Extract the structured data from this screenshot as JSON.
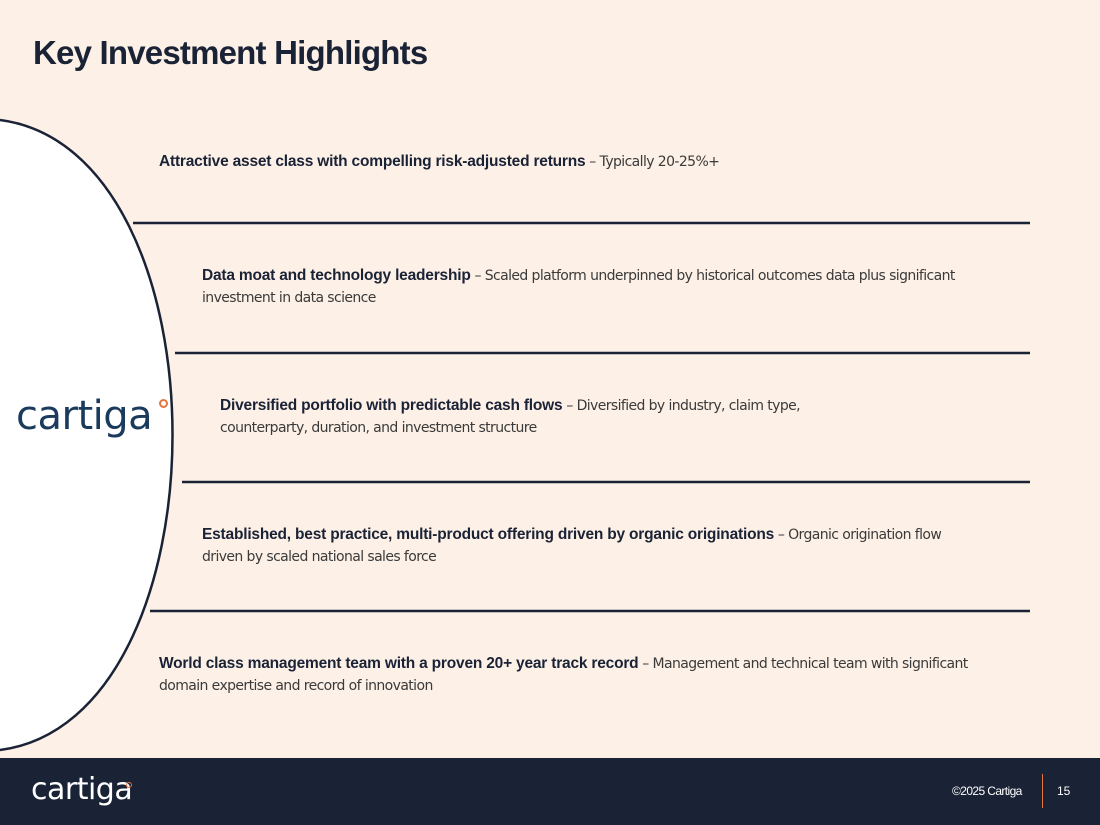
{
  "slide": {
    "title": "Key Investment Highlights",
    "logo_text": "cartiga"
  },
  "highlights": [
    {
      "heading": "Attractive asset class with compelling risk-adjusted returns",
      "description": " – Typically 20-25%+"
    },
    {
      "heading": "Data moat and technology leadership",
      "description": " – Scaled platform underpinned by historical outcomes data plus significant investment in data science"
    },
    {
      "heading": "Diversified portfolio with predictable cash flows",
      "description": " – Diversified by industry, claim type, counterparty, duration, and investment structure"
    },
    {
      "heading": "Established, best practice, multi-product offering driven by organic originations",
      "description": " – Organic origination flow driven by scaled national sales force"
    },
    {
      "heading": "World class management team with a proven 20+ year track record",
      "description": " – Management and technical team with significant domain expertise and record of innovation"
    }
  ],
  "footer": {
    "logo_text": "cartiga",
    "copyright": "©2025 Cartiga",
    "page_number": "15"
  },
  "colors": {
    "background": "#fdf0e6",
    "navy": "#1a2236",
    "accent": "#e4753d"
  }
}
